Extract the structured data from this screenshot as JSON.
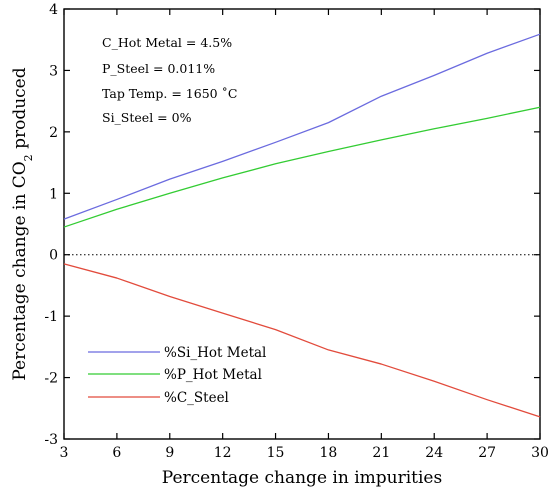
{
  "chart_data": {
    "type": "line",
    "xlabel": "Percentage change in impurities",
    "ylabel_parts": {
      "prefix": "Percentage change in CO",
      "subscript": "2",
      "suffix": " produced"
    },
    "xlim": [
      3,
      30
    ],
    "ylim": [
      -3,
      4
    ],
    "x_ticks": [
      3,
      6,
      9,
      12,
      15,
      18,
      21,
      24,
      27,
      30
    ],
    "x_tick_labels": [
      "3",
      "6",
      "9",
      "12",
      "15",
      "18",
      "21",
      "24",
      "27",
      "30"
    ],
    "y_ticks": [
      -3,
      -2,
      -1,
      0,
      1,
      2,
      3,
      4
    ],
    "y_tick_labels": [
      "-3",
      "-2",
      "-1",
      "0",
      "1",
      "2",
      "3",
      "4"
    ],
    "grid": false,
    "legend_position": "bottom-left",
    "zero_line": "dotted",
    "annotations": [
      "C_Hot Metal = 4.5%",
      "P_Steel = 0.011%",
      "Tap Temp. = 1650 ˚C",
      "Si_Steel = 0%"
    ],
    "series": [
      {
        "name": "%Si_Hot Metal",
        "color": "#6b6bdf",
        "x": [
          3,
          6,
          9,
          12,
          15,
          18,
          21,
          24,
          27,
          30
        ],
        "values": [
          0.58,
          0.9,
          1.23,
          1.52,
          1.83,
          2.15,
          2.58,
          2.92,
          3.28,
          3.59
        ]
      },
      {
        "name": "%P_Hot Metal",
        "color": "#33cc33",
        "x": [
          3,
          6,
          9,
          12,
          15,
          18,
          21,
          24,
          27,
          30
        ],
        "values": [
          0.45,
          0.74,
          1.0,
          1.25,
          1.48,
          1.68,
          1.87,
          2.05,
          2.22,
          2.4
        ]
      },
      {
        "name": "%C_Steel",
        "color": "#e24b3c",
        "x": [
          3,
          6,
          9,
          12,
          15,
          18,
          21,
          24,
          27,
          30
        ],
        "values": [
          -0.15,
          -0.38,
          -0.68,
          -0.95,
          -1.22,
          -1.55,
          -1.78,
          -2.06,
          -2.36,
          -2.64
        ]
      }
    ]
  }
}
